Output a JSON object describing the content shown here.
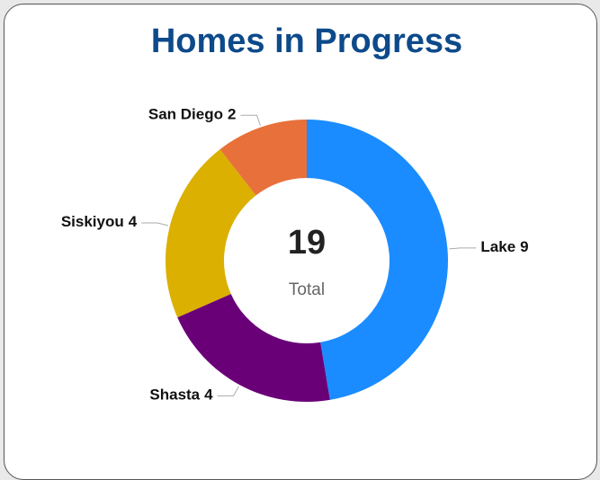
{
  "chart_data": {
    "type": "donut",
    "title": "Homes in Progress",
    "categories": [
      "Lake",
      "Shasta",
      "Siskiyou",
      "San Diego"
    ],
    "values": [
      9,
      4,
      4,
      2
    ],
    "colors": [
      "#1a8cff",
      "#6a0078",
      "#dbb000",
      "#e8703a"
    ],
    "center_value": 19,
    "center_label": "Total"
  }
}
